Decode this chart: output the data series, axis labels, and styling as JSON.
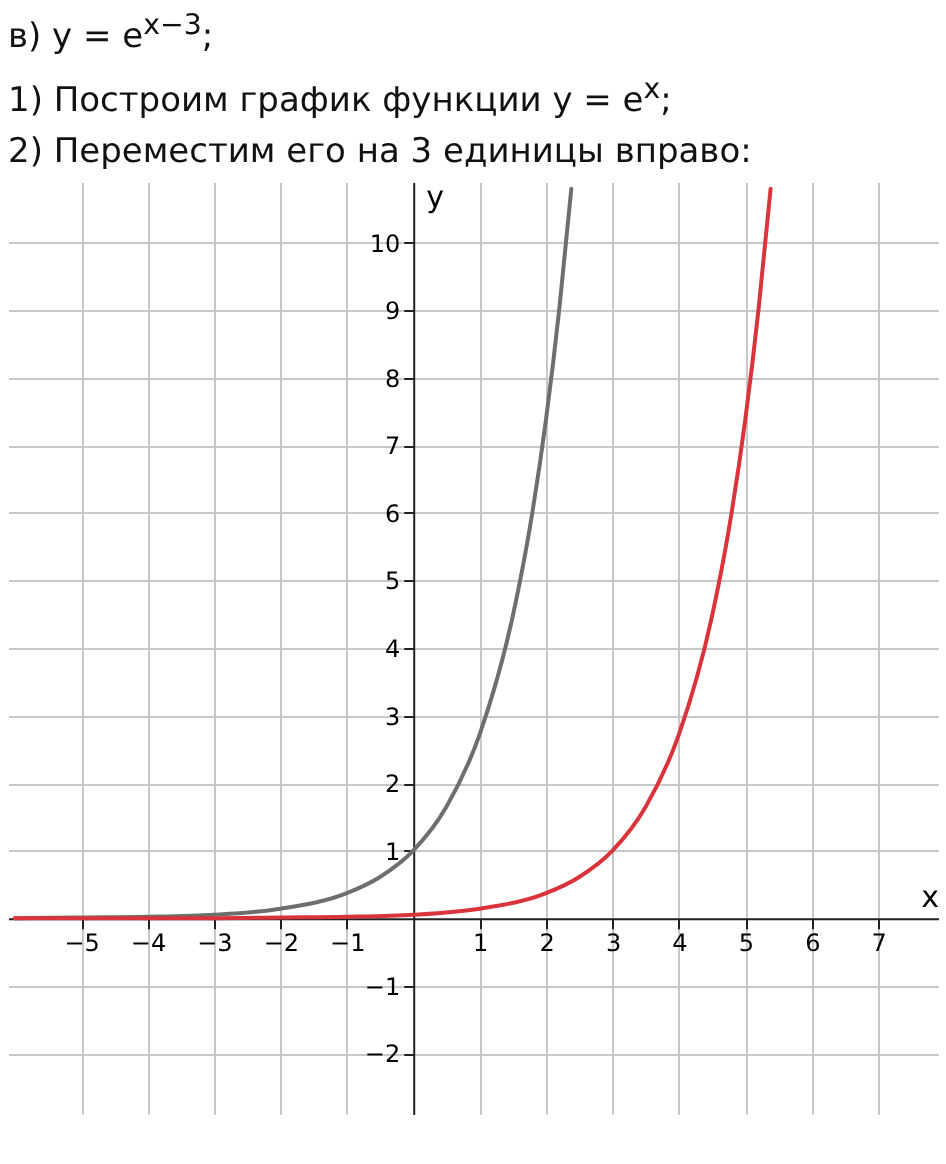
{
  "chart_data": {
    "type": "line",
    "title": "в) y = e$^{x−3}$;",
    "annotations": [
      "1) Построим график функции y = e$^{x}$;",
      "2) Переместим его на 3 единицы вправо:"
    ],
    "xlabel": "x",
    "ylabel": "y",
    "xlim": [
      -6.1,
      7.9
    ],
    "ylim": [
      -2.9,
      10.9
    ],
    "xticks": [
      -5,
      -4,
      -3,
      -2,
      -1,
      1,
      2,
      3,
      4,
      5,
      6,
      7
    ],
    "yticks": [
      -2,
      -1,
      1,
      2,
      3,
      4,
      5,
      6,
      7,
      8,
      9,
      10
    ],
    "grid": true,
    "line_style": "solid",
    "series": [
      {
        "color": "#6e6e6e",
        "x": [
          -6,
          -5,
          -4,
          -3,
          -2,
          -1,
          -0.5,
          0,
          0.5,
          1,
          1.5,
          1.75,
          2,
          2.2,
          2.38
        ],
        "values": [
          0.0,
          0.01,
          0.02,
          0.05,
          0.14,
          0.37,
          0.61,
          1,
          1.65,
          2.72,
          4.48,
          5.75,
          7.39,
          9.03,
          10.8
        ]
      },
      {
        "color": "#d9343c",
        "x": [
          -6,
          -3,
          -2,
          -1,
          0,
          1,
          2,
          2.5,
          3,
          3.5,
          4,
          4.5,
          4.75,
          5,
          5.2,
          5.38
        ],
        "values": [
          0.0,
          0.0,
          0.01,
          0.02,
          0.05,
          0.14,
          0.37,
          0.61,
          1,
          1.65,
          2.72,
          4.48,
          5.75,
          7.39,
          9.03,
          10.8
        ]
      }
    ]
  }
}
